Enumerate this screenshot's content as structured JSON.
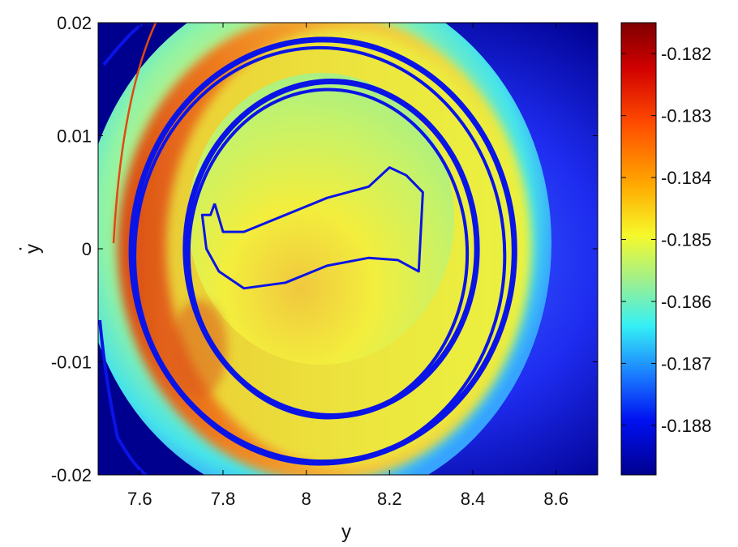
{
  "chart_data": {
    "type": "heatmap",
    "title": "",
    "xlabel": "y",
    "ylabel": "y",
    "ylabel_accent": "·",
    "xlim": [
      7.5,
      8.7
    ],
    "ylim": [
      -0.02,
      0.02
    ],
    "x_ticks": [
      "7.6",
      "7.8",
      "8",
      "8.2",
      "8.4",
      "8.6"
    ],
    "x_tick_values": [
      7.6,
      7.8,
      8.0,
      8.2,
      8.4,
      8.6
    ],
    "y_ticks": [
      "0.02",
      "0.01",
      "0",
      "-0.01",
      "-0.02"
    ],
    "y_tick_values": [
      0.02,
      0.01,
      0.0,
      -0.01,
      -0.02
    ],
    "colorbar": {
      "colormap": "jet",
      "range": [
        -0.1888,
        -0.1815
      ],
      "ticks": [
        "-0.182",
        "-0.183",
        "-0.184",
        "-0.185",
        "-0.186",
        "-0.187",
        "-0.188"
      ],
      "tick_values": [
        -0.182,
        -0.183,
        -0.184,
        -0.185,
        -0.186,
        -0.187,
        -0.188
      ]
    },
    "regions": [
      {
        "name": "outer background",
        "approx_value": -0.1885
      },
      {
        "name": "outer ring",
        "approx_value": -0.1855
      },
      {
        "name": "orange crescent (lower-left)",
        "approx_value": -0.183
      },
      {
        "name": "inner disc",
        "approx_value": -0.1852
      },
      {
        "name": "inner disc top",
        "approx_value": -0.1857
      }
    ],
    "curves": [
      {
        "name": "outer orbit",
        "center": [
          8.04,
          -0.0002
        ],
        "radius_x": 0.46,
        "radius_y": 0.0187,
        "color": "#0a14e6"
      },
      {
        "name": "inner orbit",
        "center": [
          8.06,
          0.0
        ],
        "radius_x": 0.35,
        "radius_y": 0.0148,
        "color": "#0a14e6"
      },
      {
        "name": "inner loop",
        "points": [
          [
            7.78,
            0.004
          ],
          [
            7.77,
            0.003
          ],
          [
            7.75,
            0.003
          ],
          [
            7.76,
            0.0
          ],
          [
            7.79,
            -0.002
          ],
          [
            7.85,
            -0.0035
          ],
          [
            7.95,
            -0.003
          ],
          [
            8.05,
            -0.0015
          ],
          [
            8.15,
            -0.0008
          ],
          [
            8.22,
            -0.001
          ],
          [
            8.27,
            -0.002
          ],
          [
            8.28,
            0.005
          ],
          [
            8.24,
            0.0065
          ],
          [
            8.2,
            0.0072
          ],
          [
            8.15,
            0.0055
          ],
          [
            8.05,
            0.0045
          ],
          [
            7.95,
            0.003
          ],
          [
            7.85,
            0.0015
          ],
          [
            7.8,
            0.0015
          ],
          [
            7.78,
            0.004
          ]
        ],
        "color": "#0a14e6"
      }
    ]
  }
}
